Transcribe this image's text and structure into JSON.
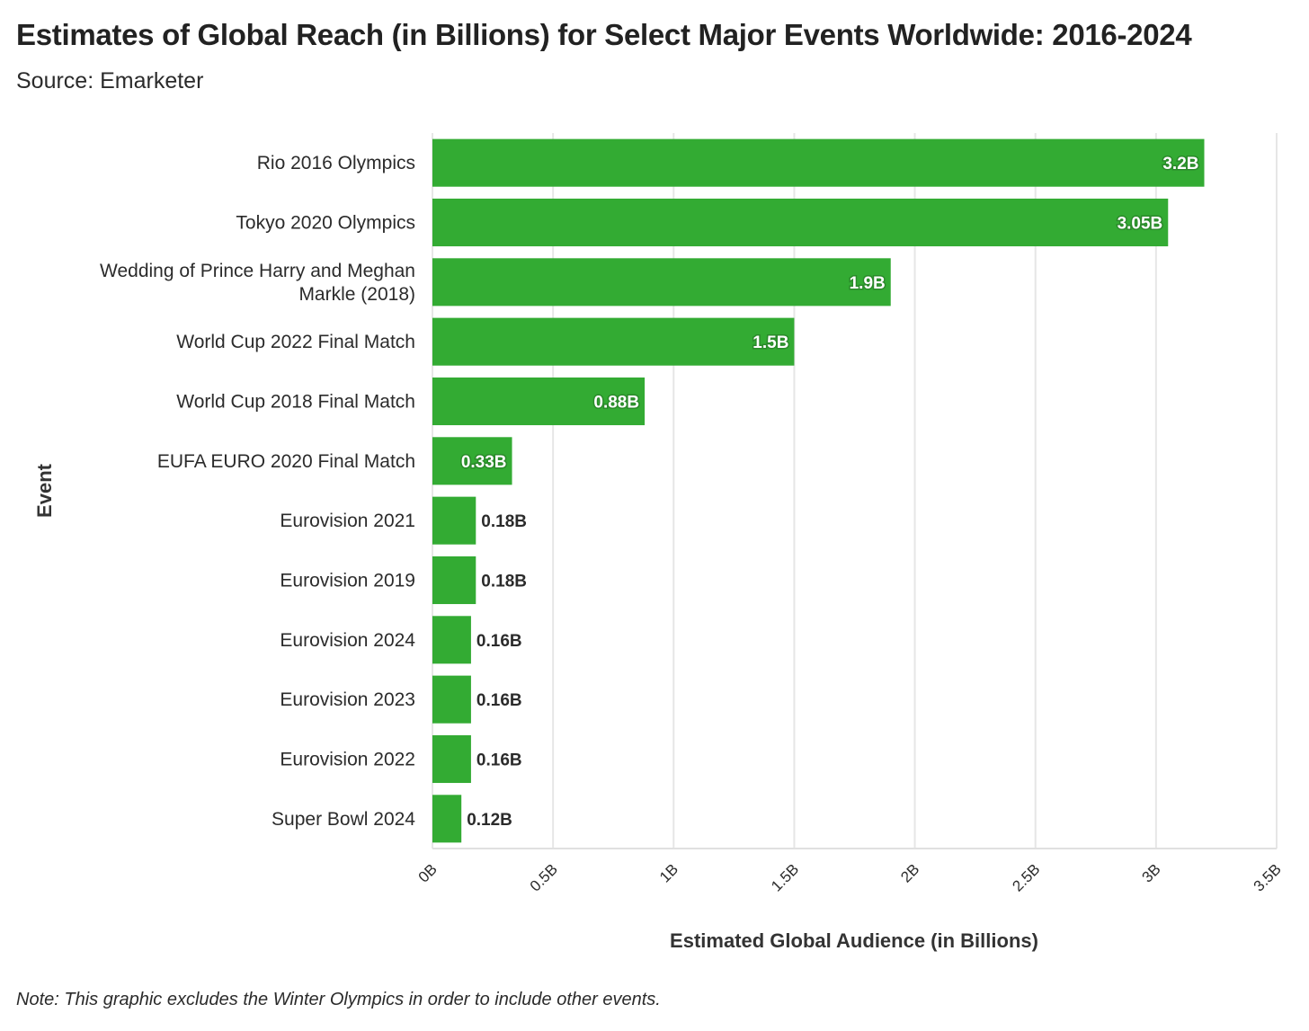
{
  "title": "Estimates of Global Reach (in Billions) for Select Major Events Worldwide: 2016-2024",
  "subtitle": "Source: Emarketer",
  "note": "Note: This graphic excludes the Winter Olympics in order to include other events.",
  "chart_data": {
    "type": "bar",
    "orientation": "horizontal",
    "xlabel": "Estimated Global Audience (in Billions)",
    "ylabel": "Event",
    "xlim": [
      0,
      3.5
    ],
    "x_ticks": [
      0,
      0.5,
      1,
      1.5,
      2,
      2.5,
      3,
      3.5
    ],
    "x_tick_labels": [
      "0B",
      "0.5B",
      "1B",
      "1.5B",
      "2B",
      "2.5B",
      "3B",
      "3.5B"
    ],
    "grid": true,
    "bar_color": "#33ab33",
    "categories": [
      "Rio 2016 Olympics",
      "Tokyo 2020 Olympics",
      "Wedding of Prince Harry and Meghan Markle (2018)",
      "World Cup 2022 Final Match",
      "World Cup 2018 Final Match",
      "EUFA EURO 2020 Final Match",
      "Eurovision 2021",
      "Eurovision 2019",
      "Eurovision 2024",
      "Eurovision 2023",
      "Eurovision 2022",
      "Super Bowl 2024"
    ],
    "category_lines": [
      [
        "Rio 2016 Olympics"
      ],
      [
        "Tokyo 2020 Olympics"
      ],
      [
        "Wedding of Prince Harry and Meghan",
        "Markle (2018)"
      ],
      [
        "World Cup 2022 Final Match"
      ],
      [
        "World Cup 2018 Final Match"
      ],
      [
        "EUFA EURO 2020 Final Match"
      ],
      [
        "Eurovision 2021"
      ],
      [
        "Eurovision 2019"
      ],
      [
        "Eurovision 2024"
      ],
      [
        "Eurovision 2023"
      ],
      [
        "Eurovision 2022"
      ],
      [
        "Super Bowl 2024"
      ]
    ],
    "values": [
      3.2,
      3.05,
      1.9,
      1.5,
      0.88,
      0.33,
      0.18,
      0.18,
      0.16,
      0.16,
      0.16,
      0.12
    ],
    "data_labels": [
      "3.2B",
      "3.05B",
      "1.9B",
      "1.5B",
      "0.88B",
      "0.33B",
      "0.18B",
      "0.18B",
      "0.16B",
      "0.16B",
      "0.16B",
      "0.12B"
    ]
  }
}
